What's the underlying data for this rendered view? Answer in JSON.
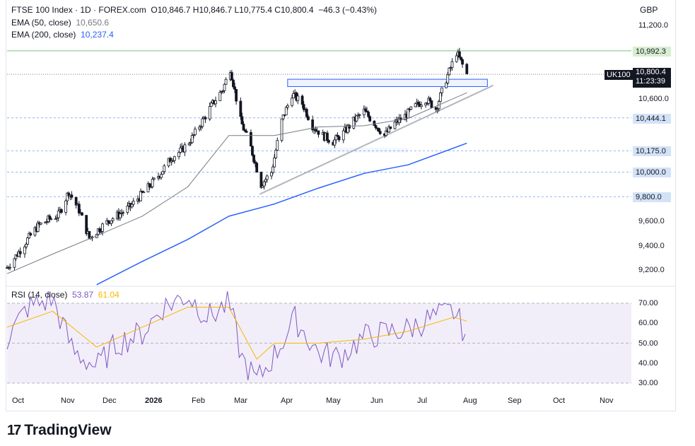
{
  "header": {
    "line1": {
      "symbol": "FTSE 100 Index · 1D · FOREX.com",
      "ohlc": "O10,846.7  H10,846.7  L10,775.4  C10,800.4",
      "change": "−46.3 (−0.43%)"
    },
    "line2": {
      "label": "EMA (50, close)",
      "value": "10,650.6"
    },
    "line3": {
      "label": "EMA (200, close)",
      "value": "10,237.4"
    }
  },
  "currency": "GBP",
  "price_axis_ticks": [
    "11,200.0",
    "10,600.0",
    "9,600.0",
    "9,400.0",
    "9,200.0"
  ],
  "price_labels": {
    "resistance": "10,992.3",
    "symbol_tag": "UK100",
    "last_price": "10,800.4",
    "countdown": "11:23:39",
    "support_1": "10,444.1",
    "support_2": "10,175.0",
    "level_3": "10,000.0",
    "level_4": "9,800.0"
  },
  "rsi_header": {
    "label": "RSI (14, close)",
    "rsi_value": "53.87",
    "ma_value": "61.04"
  },
  "rsi_axis_ticks": [
    "70.00",
    "60.00",
    "50.00",
    "40.00",
    "30.00"
  ],
  "x_axis_ticks": [
    "Oct",
    "Nov",
    "Dec",
    "2026",
    "Feb",
    "Mar",
    "Apr",
    "May",
    "Jun",
    "Jul",
    "Aug",
    "Sep",
    "Oct",
    "Nov"
  ],
  "logo": "TradingView",
  "colors": {
    "ema50": "#787b86",
    "ema200": "#2962ff",
    "rsi": "#7e57c2",
    "rsi_ma": "#f5b800",
    "candle": "#131722",
    "resistance_line": "#a5d6a7",
    "zone": "#2962ff",
    "trendline": "#b2b5be"
  },
  "chart_data": [
    {
      "type": "candlestick",
      "title": "FTSE 100 Index · 1D · FOREX.com",
      "y_axis_range": [
        9150,
        11280
      ],
      "x_axis_range": [
        "2025-10-01",
        "2026-11-30"
      ],
      "horizontal_levels": [
        10992.3,
        10444.1,
        10175.0,
        10000.0,
        9800.0
      ],
      "last_price": 10800.4,
      "series": [
        {
          "name": "FTSE 100 close (approx.)",
          "x": [
            "2025-10-01",
            "2025-10-08",
            "2025-10-15",
            "2025-10-22",
            "2025-10-29",
            "2025-11-05",
            "2025-11-12",
            "2025-11-19",
            "2025-11-26",
            "2025-12-03",
            "2025-12-10",
            "2025-12-17",
            "2025-12-24",
            "2025-12-31",
            "2026-01-07",
            "2026-01-14",
            "2026-01-21",
            "2026-01-28",
            "2026-02-04",
            "2026-02-11",
            "2026-02-18",
            "2026-02-25",
            "2026-03-02",
            "2026-03-09",
            "2026-03-16",
            "2026-03-23",
            "2026-03-30",
            "2026-04-06",
            "2026-04-13",
            "2026-04-20",
            "2026-04-27",
            "2026-05-04",
            "2026-05-11",
            "2026-05-18",
            "2026-05-25",
            "2026-06-01",
            "2026-06-08",
            "2026-06-15",
            "2026-06-22",
            "2026-06-29",
            "2026-07-06",
            "2026-07-13",
            "2026-07-20",
            "2026-07-27",
            "2026-08-03",
            "2026-08-10"
          ],
          "values": [
            9220,
            9330,
            9450,
            9560,
            9610,
            9650,
            9840,
            9690,
            9460,
            9540,
            9610,
            9660,
            9720,
            9810,
            9900,
            10000,
            10120,
            10180,
            10280,
            10420,
            10560,
            10680,
            10850,
            10420,
            10200,
            9900,
            10000,
            10420,
            10640,
            10560,
            10380,
            10300,
            10250,
            10320,
            10420,
            10500,
            10400,
            10300,
            10400,
            10460,
            10540,
            10600,
            10520,
            10760,
            10980,
            10800
          ]
        },
        {
          "name": "EMA (50, close)",
          "x": [
            "2025-10-01",
            "2025-11-01",
            "2025-12-01",
            "2026-01-01",
            "2026-02-01",
            "2026-03-01",
            "2026-04-01",
            "2026-05-01",
            "2026-06-01",
            "2026-07-01",
            "2026-08-10"
          ],
          "values": [
            9170,
            9330,
            9480,
            9640,
            9880,
            10300,
            10300,
            10370,
            10380,
            10440,
            10650
          ]
        },
        {
          "name": "EMA (200, close)",
          "x": [
            "2025-12-01",
            "2026-01-01",
            "2026-02-01",
            "2026-03-01",
            "2026-04-01",
            "2026-05-01",
            "2026-06-01",
            "2026-07-01",
            "2026-08-10"
          ],
          "values": [
            9080,
            9270,
            9450,
            9640,
            9740,
            9870,
            9990,
            10060,
            10237
          ]
        }
      ]
    },
    {
      "type": "line",
      "title": "RSI (14, close)",
      "y_axis_range": [
        28,
        77
      ],
      "reference_levels": [
        70,
        50,
        30
      ],
      "series": [
        {
          "name": "RSI",
          "x": [
            "2025-10-01",
            "2025-10-15",
            "2025-11-01",
            "2025-11-15",
            "2025-12-01",
            "2025-12-15",
            "2026-01-01",
            "2026-01-15",
            "2026-02-01",
            "2026-02-15",
            "2026-03-01",
            "2026-03-10",
            "2026-03-20",
            "2026-04-01",
            "2026-04-15",
            "2026-05-01",
            "2026-05-15",
            "2026-06-01",
            "2026-06-15",
            "2026-07-01",
            "2026-07-15",
            "2026-08-01",
            "2026-08-10"
          ],
          "values": [
            52,
            68,
            72,
            46,
            38,
            50,
            55,
            68,
            74,
            63,
            70,
            42,
            31,
            44,
            62,
            45,
            43,
            53,
            55,
            57,
            62,
            66,
            53.87
          ]
        },
        {
          "name": "RSI-based MA",
          "x": [
            "2025-10-01",
            "2025-11-01",
            "2025-12-01",
            "2026-01-01",
            "2026-02-01",
            "2026-03-01",
            "2026-03-20",
            "2026-04-01",
            "2026-05-01",
            "2026-06-01",
            "2026-07-01",
            "2026-08-01",
            "2026-08-10"
          ],
          "values": [
            58,
            66,
            48,
            58,
            68,
            68,
            42,
            50,
            50,
            52,
            56,
            63,
            61.04
          ]
        }
      ]
    }
  ]
}
